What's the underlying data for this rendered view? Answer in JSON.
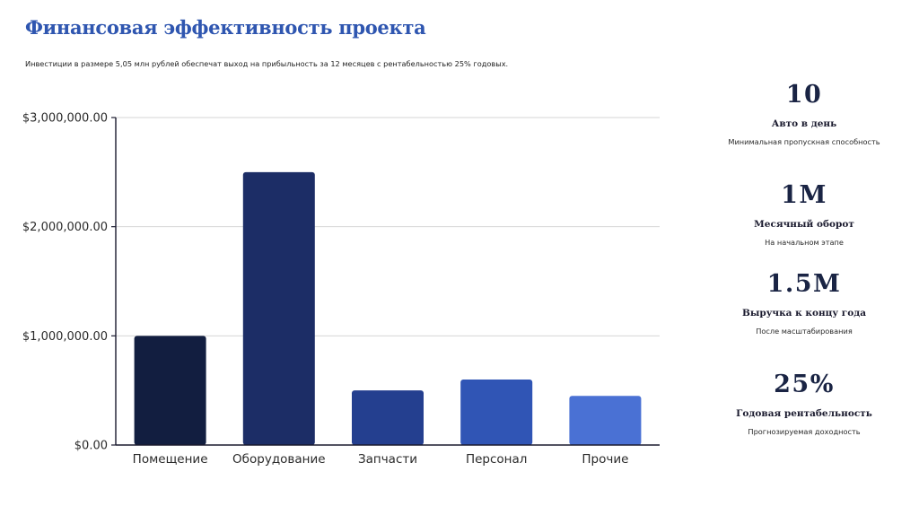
{
  "title": "Финансовая эффективность проекта",
  "subtitle": "Инвестиции в размере 5,05 млн рублей обеспечат выход на прибыльность за 12 месяцев с рентабельностью 25% годовых.",
  "chart_data": {
    "type": "bar",
    "categories": [
      "Помещение",
      "Оборудование",
      "Запчасти",
      "Персонал",
      "Прочие"
    ],
    "values": [
      1000000,
      2500000,
      500000,
      600000,
      450000
    ],
    "ylim": [
      0,
      3000000
    ],
    "yticks": [
      0,
      1000000,
      2000000,
      3000000
    ],
    "ytick_labels": [
      "$0.00",
      "$1,000,000.00",
      "$2,000,000.00",
      "$3,000,000.00"
    ],
    "bar_colors": [
      "#121e40",
      "#1c2d66",
      "#243f8f",
      "#3055b5",
      "#4a71d4"
    ],
    "grid": true,
    "legend": "none"
  },
  "kpis": [
    {
      "value": "10",
      "label": "Авто в день",
      "desc": "Минимальная пропускная способность"
    },
    {
      "value": "1M",
      "label": "Месячный оборот",
      "desc": "На начальном этапе"
    },
    {
      "value": "1.5M",
      "label": "Выручка к концу года",
      "desc": "После масштабирования"
    },
    {
      "value": "25%",
      "label": "Годовая рентабельность",
      "desc": "Прогнозируемая доходность"
    }
  ]
}
